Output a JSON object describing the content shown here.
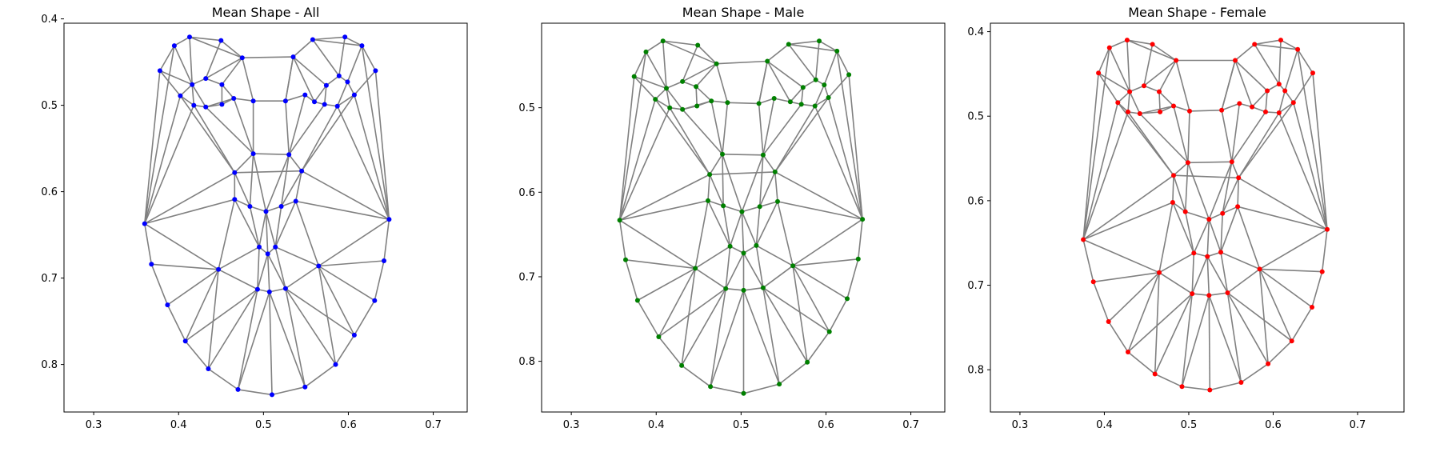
{
  "chart_data": [
    {
      "type": "scatter",
      "title": "Mean Shape - All",
      "xlabel": "",
      "ylabel": "",
      "xlim": [
        0.265,
        0.74
      ],
      "ylim": [
        0.855,
        0.405
      ],
      "y_inverted": true,
      "xticks": [
        0.3,
        0.4,
        0.5,
        0.6,
        0.7
      ],
      "xtick_labels": [
        "0.3",
        "0.4",
        "0.5",
        "0.6",
        "0.7"
      ],
      "yticks": [
        0.4,
        0.5,
        0.6,
        0.7,
        0.8
      ],
      "ytick_labels": [
        "0.4",
        "0.5",
        "0.6",
        "0.7",
        "0.8"
      ],
      "grid": false,
      "point_color": "#0000ff",
      "edge_color": "#808080",
      "points": [
        [
          0.36,
          0.637
        ],
        [
          0.368,
          0.684
        ],
        [
          0.387,
          0.731
        ],
        [
          0.408,
          0.773
        ],
        [
          0.435,
          0.805
        ],
        [
          0.47,
          0.829
        ],
        [
          0.51,
          0.835
        ],
        [
          0.549,
          0.826
        ],
        [
          0.585,
          0.8
        ],
        [
          0.607,
          0.766
        ],
        [
          0.631,
          0.726
        ],
        [
          0.642,
          0.68
        ],
        [
          0.648,
          0.632
        ],
        [
          0.395,
          0.431
        ],
        [
          0.413,
          0.421
        ],
        [
          0.45,
          0.425
        ],
        [
          0.475,
          0.445
        ],
        [
          0.378,
          0.46
        ],
        [
          0.402,
          0.489
        ],
        [
          0.535,
          0.444
        ],
        [
          0.558,
          0.424
        ],
        [
          0.596,
          0.421
        ],
        [
          0.616,
          0.431
        ],
        [
          0.632,
          0.46
        ],
        [
          0.607,
          0.488
        ],
        [
          0.418,
          0.5
        ],
        [
          0.432,
          0.502
        ],
        [
          0.416,
          0.476
        ],
        [
          0.432,
          0.469
        ],
        [
          0.451,
          0.476
        ],
        [
          0.451,
          0.499
        ],
        [
          0.572,
          0.499
        ],
        [
          0.587,
          0.501
        ],
        [
          0.574,
          0.477
        ],
        [
          0.589,
          0.466
        ],
        [
          0.599,
          0.473
        ],
        [
          0.56,
          0.496
        ],
        [
          0.465,
          0.492
        ],
        [
          0.488,
          0.495
        ],
        [
          0.526,
          0.495
        ],
        [
          0.549,
          0.488
        ],
        [
          0.488,
          0.556
        ],
        [
          0.53,
          0.557
        ],
        [
          0.466,
          0.578
        ],
        [
          0.545,
          0.576
        ],
        [
          0.466,
          0.609
        ],
        [
          0.484,
          0.617
        ],
        [
          0.503,
          0.623
        ],
        [
          0.521,
          0.617
        ],
        [
          0.538,
          0.611
        ],
        [
          0.447,
          0.69
        ],
        [
          0.495,
          0.664
        ],
        [
          0.505,
          0.672
        ],
        [
          0.514,
          0.664
        ],
        [
          0.565,
          0.686
        ],
        [
          0.493,
          0.713
        ],
        [
          0.507,
          0.716
        ],
        [
          0.526,
          0.712
        ]
      ]
    },
    {
      "type": "scatter",
      "title": "Mean Shape - Male",
      "xlabel": "",
      "ylabel": "",
      "xlim": [
        0.265,
        0.74
      ],
      "ylim": [
        0.86,
        0.4
      ],
      "y_inverted": true,
      "xticks": [
        0.3,
        0.4,
        0.5,
        0.6,
        0.7
      ],
      "xtick_labels": [
        "0.3",
        "0.4",
        "0.5",
        "0.6",
        "0.7"
      ],
      "yticks": [
        0.5,
        0.6,
        0.7,
        0.8
      ],
      "ytick_labels": [
        "0.5",
        "0.6",
        "0.7",
        "0.8"
      ],
      "grid": false,
      "point_color": "#008000",
      "edge_color": "#808080",
      "points": [
        [
          0.357,
          0.633
        ],
        [
          0.364,
          0.68
        ],
        [
          0.378,
          0.728
        ],
        [
          0.403,
          0.771
        ],
        [
          0.43,
          0.805
        ],
        [
          0.464,
          0.83
        ],
        [
          0.503,
          0.838
        ],
        [
          0.545,
          0.827
        ],
        [
          0.578,
          0.801
        ],
        [
          0.604,
          0.765
        ],
        [
          0.625,
          0.726
        ],
        [
          0.638,
          0.679
        ],
        [
          0.643,
          0.632
        ],
        [
          0.388,
          0.434
        ],
        [
          0.408,
          0.421
        ],
        [
          0.449,
          0.426
        ],
        [
          0.471,
          0.448
        ],
        [
          0.374,
          0.463
        ],
        [
          0.399,
          0.49
        ],
        [
          0.531,
          0.445
        ],
        [
          0.556,
          0.425
        ],
        [
          0.592,
          0.421
        ],
        [
          0.613,
          0.433
        ],
        [
          0.627,
          0.461
        ],
        [
          0.603,
          0.488
        ],
        [
          0.416,
          0.5
        ],
        [
          0.431,
          0.502
        ],
        [
          0.412,
          0.477
        ],
        [
          0.431,
          0.469
        ],
        [
          0.447,
          0.475
        ],
        [
          0.448,
          0.498
        ],
        [
          0.571,
          0.496
        ],
        [
          0.587,
          0.498
        ],
        [
          0.573,
          0.476
        ],
        [
          0.588,
          0.467
        ],
        [
          0.598,
          0.473
        ],
        [
          0.558,
          0.493
        ],
        [
          0.465,
          0.492
        ],
        [
          0.484,
          0.494
        ],
        [
          0.521,
          0.495
        ],
        [
          0.539,
          0.489
        ],
        [
          0.478,
          0.555
        ],
        [
          0.526,
          0.556
        ],
        [
          0.463,
          0.579
        ],
        [
          0.54,
          0.576
        ],
        [
          0.461,
          0.61
        ],
        [
          0.479,
          0.616
        ],
        [
          0.501,
          0.623
        ],
        [
          0.522,
          0.617
        ],
        [
          0.543,
          0.611
        ],
        [
          0.446,
          0.69
        ],
        [
          0.487,
          0.664
        ],
        [
          0.503,
          0.672
        ],
        [
          0.518,
          0.663
        ],
        [
          0.561,
          0.687
        ],
        [
          0.482,
          0.714
        ],
        [
          0.503,
          0.716
        ],
        [
          0.526,
          0.713
        ]
      ]
    },
    {
      "type": "scatter",
      "title": "Mean Shape - Female",
      "xlabel": "",
      "ylabel": "",
      "xlim": [
        0.265,
        0.755
      ],
      "ylim": [
        0.85,
        0.39
      ],
      "y_inverted": true,
      "xticks": [
        0.3,
        0.4,
        0.5,
        0.6,
        0.7
      ],
      "xtick_labels": [
        "0.3",
        "0.4",
        "0.5",
        "0.6",
        "0.7"
      ],
      "yticks": [
        0.4,
        0.5,
        0.6,
        0.7,
        0.8
      ],
      "ytick_labels": [
        "0.4",
        "0.5",
        "0.6",
        "0.7",
        "0.8"
      ],
      "grid": false,
      "point_color": "#ff0000",
      "edge_color": "#808080",
      "points": [
        [
          0.375,
          0.646
        ],
        [
          0.387,
          0.696
        ],
        [
          0.405,
          0.743
        ],
        [
          0.428,
          0.779
        ],
        [
          0.46,
          0.805
        ],
        [
          0.492,
          0.82
        ],
        [
          0.525,
          0.824
        ],
        [
          0.562,
          0.815
        ],
        [
          0.594,
          0.793
        ],
        [
          0.622,
          0.766
        ],
        [
          0.646,
          0.726
        ],
        [
          0.658,
          0.684
        ],
        [
          0.664,
          0.634
        ],
        [
          0.406,
          0.419
        ],
        [
          0.427,
          0.41
        ],
        [
          0.457,
          0.415
        ],
        [
          0.485,
          0.434
        ],
        [
          0.393,
          0.449
        ],
        [
          0.416,
          0.484
        ],
        [
          0.555,
          0.434
        ],
        [
          0.578,
          0.415
        ],
        [
          0.609,
          0.41
        ],
        [
          0.629,
          0.421
        ],
        [
          0.647,
          0.449
        ],
        [
          0.624,
          0.484
        ],
        [
          0.428,
          0.495
        ],
        [
          0.442,
          0.497
        ],
        [
          0.43,
          0.471
        ],
        [
          0.447,
          0.464
        ],
        [
          0.465,
          0.471
        ],
        [
          0.466,
          0.495
        ],
        [
          0.591,
          0.495
        ],
        [
          0.607,
          0.496
        ],
        [
          0.593,
          0.47
        ],
        [
          0.607,
          0.462
        ],
        [
          0.614,
          0.47
        ],
        [
          0.575,
          0.489
        ],
        [
          0.482,
          0.488
        ],
        [
          0.501,
          0.494
        ],
        [
          0.539,
          0.493
        ],
        [
          0.56,
          0.485
        ],
        [
          0.499,
          0.555
        ],
        [
          0.551,
          0.554
        ],
        [
          0.482,
          0.57
        ],
        [
          0.559,
          0.573
        ],
        [
          0.481,
          0.602
        ],
        [
          0.496,
          0.613
        ],
        [
          0.524,
          0.622
        ],
        [
          0.54,
          0.615
        ],
        [
          0.558,
          0.607
        ],
        [
          0.465,
          0.685
        ],
        [
          0.506,
          0.662
        ],
        [
          0.522,
          0.666
        ],
        [
          0.538,
          0.661
        ],
        [
          0.584,
          0.681
        ],
        [
          0.504,
          0.71
        ],
        [
          0.524,
          0.712
        ],
        [
          0.546,
          0.709
        ]
      ]
    }
  ],
  "mesh_edges": [
    [
      0,
      1
    ],
    [
      1,
      2
    ],
    [
      2,
      3
    ],
    [
      3,
      4
    ],
    [
      4,
      5
    ],
    [
      5,
      6
    ],
    [
      6,
      7
    ],
    [
      7,
      8
    ],
    [
      8,
      9
    ],
    [
      9,
      10
    ],
    [
      10,
      11
    ],
    [
      11,
      12
    ],
    [
      13,
      14
    ],
    [
      14,
      15
    ],
    [
      15,
      16
    ],
    [
      13,
      17
    ],
    [
      17,
      18
    ],
    [
      13,
      27
    ],
    [
      14,
      27
    ],
    [
      14,
      16
    ],
    [
      15,
      28
    ],
    [
      16,
      28
    ],
    [
      16,
      29
    ],
    [
      16,
      19
    ],
    [
      19,
      20
    ],
    [
      20,
      21
    ],
    [
      21,
      22
    ],
    [
      22,
      23
    ],
    [
      23,
      24
    ],
    [
      20,
      22
    ],
    [
      19,
      33
    ],
    [
      20,
      34
    ],
    [
      21,
      34
    ],
    [
      22,
      35
    ],
    [
      24,
      35
    ],
    [
      24,
      32
    ],
    [
      27,
      28
    ],
    [
      28,
      29
    ],
    [
      29,
      30
    ],
    [
      30,
      26
    ],
    [
      26,
      25
    ],
    [
      25,
      27
    ],
    [
      27,
      26
    ],
    [
      18,
      25
    ],
    [
      18,
      27
    ],
    [
      17,
      27
    ],
    [
      33,
      34
    ],
    [
      34,
      35
    ],
    [
      35,
      32
    ],
    [
      32,
      31
    ],
    [
      31,
      36
    ],
    [
      36,
      33
    ],
    [
      33,
      31
    ],
    [
      19,
      36
    ],
    [
      19,
      39
    ],
    [
      29,
      37
    ],
    [
      30,
      37
    ],
    [
      37,
      38
    ],
    [
      38,
      39
    ],
    [
      39,
      40
    ],
    [
      40,
      36
    ],
    [
      38,
      16
    ],
    [
      39,
      19
    ],
    [
      26,
      37
    ],
    [
      41,
      42
    ],
    [
      37,
      41
    ],
    [
      38,
      41
    ],
    [
      39,
      42
    ],
    [
      40,
      42
    ],
    [
      41,
      43
    ],
    [
      42,
      44
    ],
    [
      43,
      44
    ],
    [
      43,
      45
    ],
    [
      44,
      49
    ],
    [
      45,
      46
    ],
    [
      46,
      47
    ],
    [
      47,
      48
    ],
    [
      48,
      49
    ],
    [
      43,
      46
    ],
    [
      41,
      46
    ],
    [
      42,
      48
    ],
    [
      44,
      48
    ],
    [
      41,
      47
    ],
    [
      42,
      47
    ],
    [
      0,
      13
    ],
    [
      0,
      17
    ],
    [
      0,
      18
    ],
    [
      0,
      25
    ],
    [
      0,
      43
    ],
    [
      0,
      45
    ],
    [
      0,
      50
    ],
    [
      25,
      43
    ],
    [
      26,
      41
    ],
    [
      18,
      43
    ],
    [
      12,
      22
    ],
    [
      12,
      23
    ],
    [
      12,
      24
    ],
    [
      12,
      32
    ],
    [
      12,
      44
    ],
    [
      12,
      49
    ],
    [
      12,
      54
    ],
    [
      32,
      44
    ],
    [
      31,
      42
    ],
    [
      24,
      44
    ],
    [
      45,
      50
    ],
    [
      45,
      51
    ],
    [
      46,
      51
    ],
    [
      47,
      51
    ],
    [
      47,
      52
    ],
    [
      47,
      53
    ],
    [
      48,
      53
    ],
    [
      49,
      53
    ],
    [
      49,
      54
    ],
    [
      51,
      52
    ],
    [
      52,
      53
    ],
    [
      50,
      51
    ],
    [
      53,
      54
    ],
    [
      50,
      55
    ],
    [
      51,
      55
    ],
    [
      52,
      55
    ],
    [
      52,
      56
    ],
    [
      52,
      57
    ],
    [
      53,
      57
    ],
    [
      54,
      57
    ],
    [
      55,
      56
    ],
    [
      56,
      57
    ],
    [
      1,
      50
    ],
    [
      2,
      50
    ],
    [
      3,
      50
    ],
    [
      4,
      50
    ],
    [
      4,
      55
    ],
    [
      5,
      55
    ],
    [
      5,
      56
    ],
    [
      6,
      56
    ],
    [
      7,
      56
    ],
    [
      7,
      57
    ],
    [
      8,
      57
    ],
    [
      8,
      54
    ],
    [
      9,
      54
    ],
    [
      10,
      54
    ],
    [
      11,
      54
    ],
    [
      3,
      55
    ],
    [
      9,
      57
    ]
  ]
}
